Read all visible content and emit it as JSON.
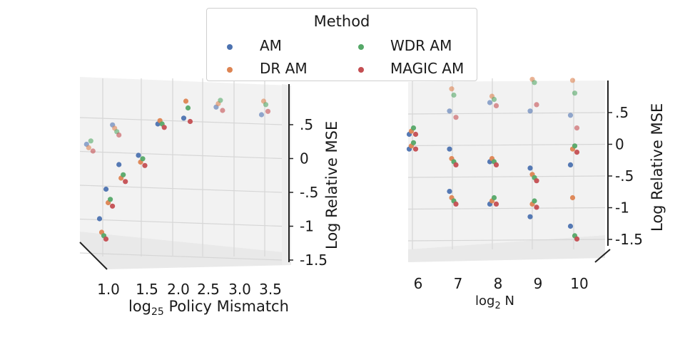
{
  "legend": {
    "title": "Method",
    "items": [
      {
        "label": "AM",
        "color": "#4c72b0"
      },
      {
        "label": "WDR AM",
        "color": "#55a868"
      },
      {
        "label": "DR AM",
        "color": "#dd8452"
      },
      {
        "label": "MAGIC AM",
        "color": "#c44e52"
      }
    ]
  },
  "chart_data": [
    {
      "type": "scatter",
      "projection": "3d",
      "title": "",
      "xlabel_prefix": "log",
      "xlabel_sub": "25",
      "xlabel_suffix": " Policy Mismatch",
      "zlabel": "Log Relative MSE",
      "xticks": [
        "1.0",
        "1.5",
        "2.0",
        "2.5",
        "3.0",
        "3.5"
      ],
      "zticks": [
        ".5",
        "0",
        "-.5",
        "-1",
        "-1.5"
      ],
      "zlim": [
        -1.5,
        0.9
      ],
      "series": [
        {
          "name": "AM",
          "points": [
            [
              1.0,
              -1.1
            ],
            [
              1.1,
              -0.6
            ],
            [
              1.3,
              -0.3
            ],
            [
              1.6,
              -0.1
            ],
            [
              1.9,
              0.3
            ],
            [
              2.3,
              0.45
            ],
            [
              2.8,
              0.55
            ],
            [
              3.5,
              0.5
            ],
            [
              0.8,
              0.0
            ],
            [
              1.2,
              0.35
            ]
          ]
        },
        {
          "name": "DR AM",
          "points": [
            [
              1.0,
              -1.3
            ],
            [
              1.1,
              -0.8
            ],
            [
              1.3,
              -0.5
            ],
            [
              1.6,
              -0.2
            ],
            [
              1.9,
              0.35
            ],
            [
              2.3,
              0.7
            ],
            [
              2.8,
              0.6
            ],
            [
              3.5,
              0.7
            ],
            [
              0.8,
              -0.05
            ],
            [
              1.2,
              0.3
            ]
          ]
        },
        {
          "name": "WDR AM",
          "points": [
            [
              1.0,
              -1.35
            ],
            [
              1.1,
              -0.75
            ],
            [
              1.3,
              -0.45
            ],
            [
              1.6,
              -0.15
            ],
            [
              1.9,
              0.3
            ],
            [
              2.3,
              0.6
            ],
            [
              2.8,
              0.65
            ],
            [
              3.5,
              0.65
            ],
            [
              0.8,
              0.05
            ],
            [
              1.2,
              0.25
            ]
          ]
        },
        {
          "name": "MAGIC AM",
          "points": [
            [
              1.0,
              -1.4
            ],
            [
              1.1,
              -0.85
            ],
            [
              1.3,
              -0.55
            ],
            [
              1.6,
              -0.25
            ],
            [
              1.9,
              0.25
            ],
            [
              2.3,
              0.4
            ],
            [
              2.8,
              0.5
            ],
            [
              3.5,
              0.55
            ],
            [
              0.8,
              -0.1
            ],
            [
              1.2,
              0.2
            ]
          ]
        }
      ]
    },
    {
      "type": "scatter",
      "projection": "3d",
      "title": "",
      "xlabel_prefix": "log",
      "xlabel_sub": "2",
      "xlabel_suffix": " N",
      "zlabel": "Log Relative MSE",
      "xticks": [
        "6",
        "7",
        "8",
        "9",
        "10"
      ],
      "zticks": [
        ".5",
        "0",
        "-.5",
        "-1",
        "-1.5"
      ],
      "zlim": [
        -1.5,
        0.9
      ],
      "series": [
        {
          "name": "AM",
          "points": [
            [
              6,
              -0.3
            ],
            [
              6,
              0.0
            ],
            [
              7,
              -0.3
            ],
            [
              7,
              -0.9
            ],
            [
              8,
              -0.5
            ],
            [
              8,
              -1.1
            ],
            [
              9,
              -0.6
            ],
            [
              9,
              -1.3
            ],
            [
              10,
              -0.55
            ],
            [
              10,
              -1.45
            ],
            [
              7,
              0.3
            ],
            [
              8,
              0.5
            ],
            [
              9,
              0.3
            ],
            [
              10,
              0.3
            ]
          ]
        },
        {
          "name": "DR AM",
          "points": [
            [
              6,
              -0.25
            ],
            [
              6,
              0.05
            ],
            [
              7,
              -0.45
            ],
            [
              7,
              -1.0
            ],
            [
              8,
              -0.45
            ],
            [
              8,
              -1.05
            ],
            [
              9,
              -0.7
            ],
            [
              9,
              -1.1
            ],
            [
              10,
              -0.3
            ],
            [
              10,
              -1.0
            ],
            [
              7,
              0.65
            ],
            [
              8,
              0.6
            ],
            [
              9,
              0.8
            ],
            [
              10,
              0.85
            ]
          ]
        },
        {
          "name": "WDR AM",
          "points": [
            [
              6,
              -0.2
            ],
            [
              6,
              0.1
            ],
            [
              7,
              -0.5
            ],
            [
              7,
              -1.05
            ],
            [
              8,
              -0.5
            ],
            [
              8,
              -1.0
            ],
            [
              9,
              -0.75
            ],
            [
              9,
              -1.05
            ],
            [
              10,
              -0.25
            ],
            [
              10,
              -1.6
            ],
            [
              7,
              0.55
            ],
            [
              8,
              0.55
            ],
            [
              9,
              0.75
            ],
            [
              10,
              0.65
            ]
          ]
        },
        {
          "name": "MAGIC AM",
          "points": [
            [
              6,
              -0.3
            ],
            [
              6,
              0.0
            ],
            [
              7,
              -0.55
            ],
            [
              7,
              -1.1
            ],
            [
              8,
              -0.55
            ],
            [
              8,
              -1.1
            ],
            [
              9,
              -0.8
            ],
            [
              9,
              -1.15
            ],
            [
              10,
              -0.35
            ],
            [
              10,
              -1.65
            ],
            [
              7,
              0.2
            ],
            [
              8,
              0.45
            ],
            [
              9,
              0.4
            ],
            [
              10,
              0.1
            ]
          ]
        }
      ]
    }
  ]
}
